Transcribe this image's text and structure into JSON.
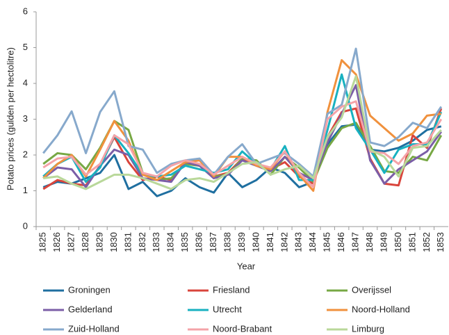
{
  "chart_data": {
    "type": "line",
    "x_label": "Year",
    "y_label": "Potato prices (gulden per hectolitre)",
    "categories": [
      "1825",
      "1826",
      "1827",
      "1828",
      "1829",
      "1830",
      "1831",
      "1832",
      "1833",
      "1834",
      "1835",
      "1836",
      "1837",
      "1838",
      "1839",
      "1840",
      "1841",
      "1842",
      "1843",
      "1844",
      "1845",
      "1846",
      "1847",
      "1848",
      "1849",
      "1850",
      "1851",
      "1852",
      "1853"
    ],
    "ylim": [
      0,
      6
    ],
    "yticks": [
      0,
      1,
      2,
      3,
      4,
      5,
      6
    ],
    "grid": false,
    "legend": "bottom",
    "series": [
      {
        "name": "Groningen",
        "color": "#1f6fa0",
        "values": [
          1.1,
          1.25,
          1.2,
          1.35,
          1.5,
          2.0,
          1.05,
          1.25,
          0.85,
          1.0,
          1.35,
          1.1,
          0.95,
          1.5,
          1.1,
          1.3,
          1.65,
          1.5,
          1.1,
          1.25,
          2.3,
          2.8,
          2.85,
          2.15,
          2.1,
          2.2,
          2.4,
          2.7,
          2.8
        ]
      },
      {
        "name": "Friesland",
        "color": "#d9453c",
        "values": [
          1.05,
          1.3,
          1.2,
          1.15,
          1.7,
          2.5,
          1.8,
          1.3,
          1.4,
          1.3,
          1.8,
          1.7,
          1.4,
          1.5,
          1.9,
          1.7,
          1.6,
          1.8,
          1.4,
          1.2,
          2.5,
          3.2,
          3.3,
          1.9,
          1.2,
          1.15,
          2.55,
          2.2,
          3.3
        ]
      },
      {
        "name": "Overijssel",
        "color": "#77a844",
        "values": [
          1.75,
          2.05,
          2.0,
          1.6,
          2.2,
          2.95,
          2.7,
          1.5,
          1.3,
          1.35,
          1.75,
          1.7,
          1.4,
          1.45,
          1.9,
          1.85,
          1.45,
          1.95,
          1.65,
          1.25,
          2.2,
          2.75,
          2.9,
          2.25,
          1.55,
          1.5,
          1.95,
          1.85,
          2.55
        ]
      },
      {
        "name": "Gelderland",
        "color": "#7b5ea7",
        "values": [
          1.35,
          1.65,
          1.6,
          1.1,
          1.7,
          2.15,
          2.0,
          1.35,
          1.3,
          1.25,
          1.8,
          1.7,
          1.35,
          1.45,
          1.85,
          1.7,
          1.55,
          1.95,
          1.5,
          1.3,
          2.35,
          3.15,
          3.95,
          1.85,
          1.2,
          1.6,
          1.85,
          2.1,
          2.65
        ]
      },
      {
        "name": "Utrecht",
        "color": "#18b1c0",
        "values": [
          1.4,
          1.75,
          1.95,
          1.25,
          1.65,
          2.55,
          2.05,
          1.45,
          1.4,
          1.45,
          1.7,
          1.6,
          1.5,
          1.6,
          2.1,
          1.75,
          1.6,
          2.25,
          1.3,
          1.3,
          2.7,
          4.25,
          2.75,
          2.15,
          1.5,
          2.15,
          2.3,
          2.3,
          3.2
        ]
      },
      {
        "name": "Noord-Holland",
        "color": "#f0913d",
        "values": [
          1.35,
          1.75,
          2.0,
          1.4,
          2.15,
          2.95,
          2.4,
          1.45,
          1.3,
          1.55,
          1.8,
          1.85,
          1.4,
          1.95,
          1.95,
          1.7,
          1.6,
          2.1,
          1.45,
          1.0,
          3.2,
          4.65,
          4.25,
          3.1,
          2.75,
          2.4,
          2.6,
          3.1,
          3.15
        ]
      },
      {
        "name": "Zuid-Holland",
        "color": "#87a9cc",
        "values": [
          2.05,
          2.55,
          3.22,
          2.05,
          3.2,
          3.78,
          2.25,
          2.15,
          1.5,
          1.75,
          1.85,
          1.9,
          1.45,
          1.95,
          2.3,
          1.75,
          1.9,
          2.05,
          1.75,
          1.4,
          3.15,
          3.4,
          4.97,
          2.35,
          2.25,
          2.5,
          2.9,
          2.75,
          3.35
        ]
      },
      {
        "name": "Noord-Brabant",
        "color": "#f4a3a8",
        "values": [
          1.65,
          1.9,
          1.95,
          1.45,
          1.75,
          2.55,
          2.3,
          1.5,
          1.4,
          1.7,
          1.85,
          1.75,
          1.45,
          1.7,
          1.95,
          1.75,
          1.65,
          2.1,
          1.5,
          1.1,
          3.0,
          3.35,
          3.5,
          2.1,
          2.05,
          1.75,
          2.25,
          2.35,
          3.0
        ]
      },
      {
        "name": "Limburg",
        "color": "#b9d89a",
        "values": [
          1.35,
          1.4,
          1.2,
          1.05,
          1.25,
          1.45,
          1.45,
          1.35,
          1.2,
          1.05,
          1.3,
          1.35,
          1.25,
          1.5,
          1.75,
          1.8,
          1.45,
          1.6,
          1.7,
          1.35,
          2.5,
          3.05,
          4.2,
          2.15,
          1.95,
          1.4,
          2.2,
          2.25,
          2.7
        ]
      }
    ]
  }
}
